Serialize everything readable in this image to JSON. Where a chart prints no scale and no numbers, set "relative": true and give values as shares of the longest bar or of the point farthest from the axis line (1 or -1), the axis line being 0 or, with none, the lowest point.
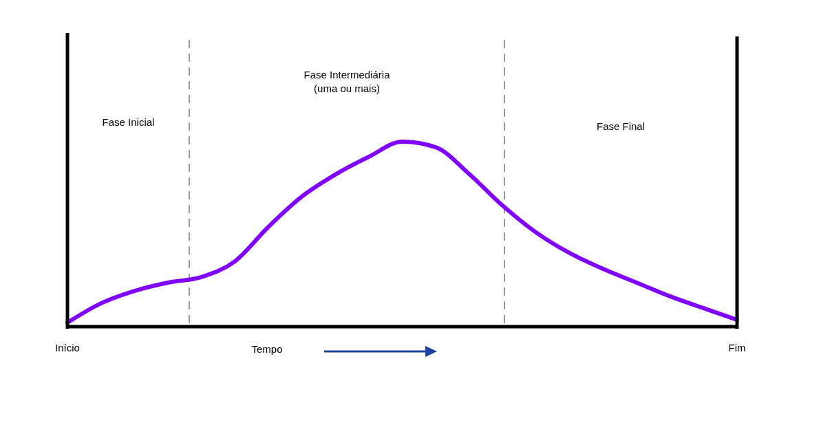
{
  "chart_data": {
    "type": "line",
    "relative": true,
    "xlabel": "Tempo",
    "categories": [
      "Início",
      null,
      null,
      null,
      null,
      null,
      null,
      null,
      null,
      null,
      null,
      null,
      null,
      null,
      null,
      null,
      null,
      null,
      null,
      null,
      "Fim"
    ],
    "series": [
      {
        "color": "#7f00ff",
        "values": [
          0.022,
          0.126,
          0.193,
          0.238,
          0.268,
          0.353,
          0.539,
          0.703,
          0.822,
          0.918,
          1,
          0.97,
          0.825,
          0.654,
          0.509,
          0.398,
          0.312,
          0.238,
          0.164,
          0.1,
          0.037
        ]
      }
    ],
    "annotations": [
      "Fase Inicial",
      "Fase Intermediária\n(uma ou mais)",
      "Fase Final"
    ],
    "marker": "none",
    "line_style": "solid"
  }
}
